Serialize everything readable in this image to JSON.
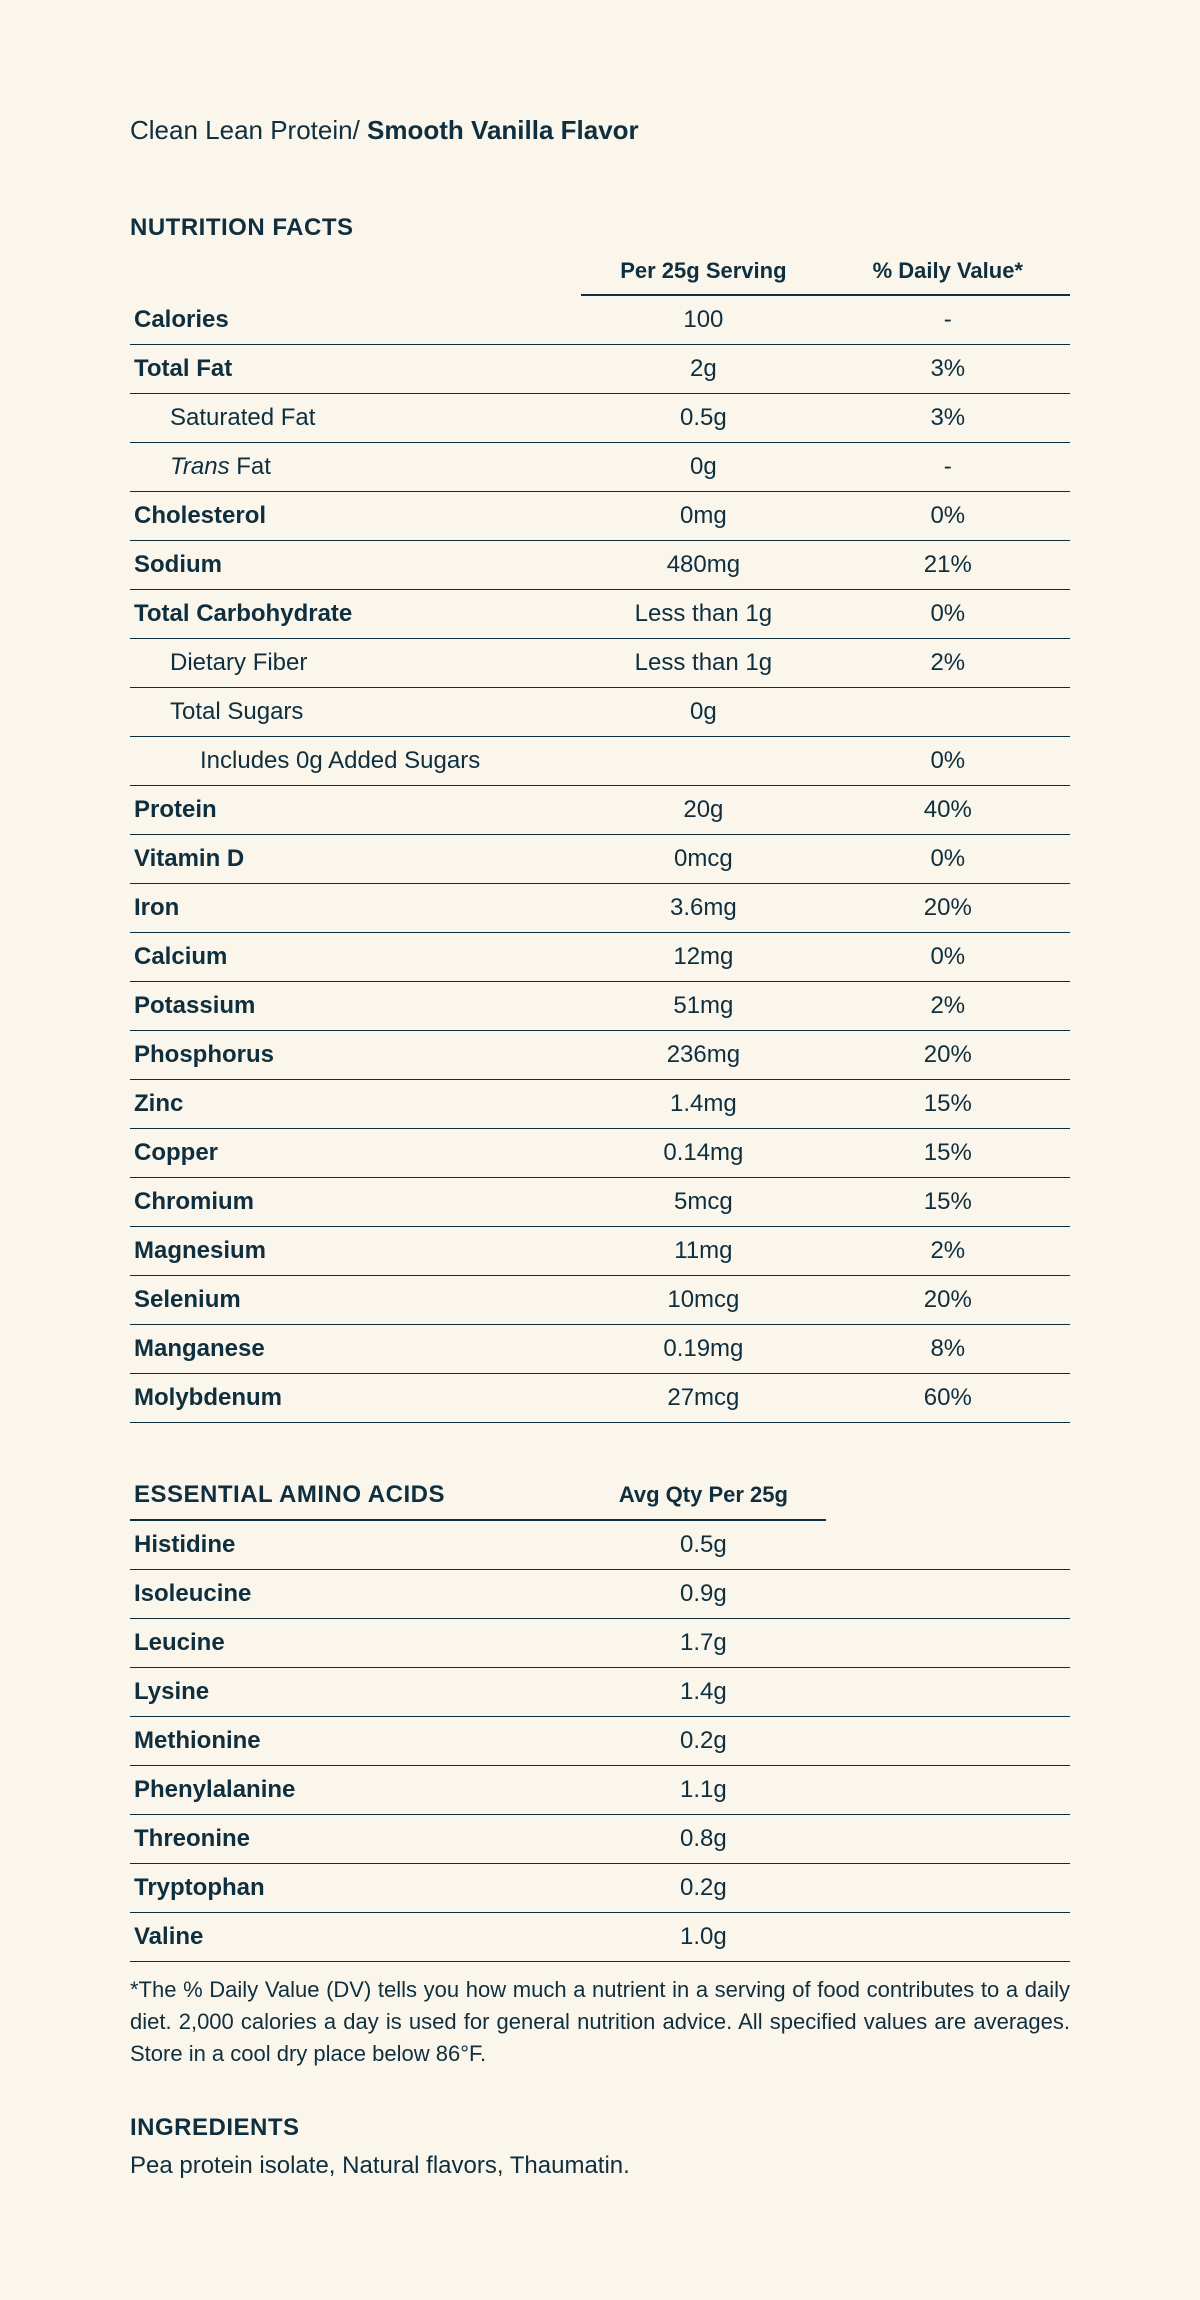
{
  "product": {
    "line1_prefix": "Clean Lean Protein/ ",
    "line1_bold": "Smooth Vanilla Flavor"
  },
  "nutrition": {
    "title": "NUTRITION FACTS",
    "col_serving": "Per 25g Serving",
    "col_dv": "% Daily Value*",
    "rows": [
      {
        "label": "Calories",
        "serving": "100",
        "dv": "-",
        "level": 0
      },
      {
        "label": "Total Fat",
        "serving": "2g",
        "dv": "3%",
        "level": 0
      },
      {
        "label": "Saturated Fat",
        "serving": "0.5g",
        "dv": "3%",
        "level": 1
      },
      {
        "label_html": "<span class='italic'>Trans</span> Fat",
        "serving": "0g",
        "dv": "-",
        "level": 1
      },
      {
        "label": "Cholesterol",
        "serving": "0mg",
        "dv": "0%",
        "level": 0
      },
      {
        "label": "Sodium",
        "serving": "480mg",
        "dv": "21%",
        "level": 0
      },
      {
        "label": "Total Carbohydrate",
        "serving": "Less than 1g",
        "dv": "0%",
        "level": 0
      },
      {
        "label": "Dietary Fiber",
        "serving": "Less than 1g",
        "dv": "2%",
        "level": 1
      },
      {
        "label": "Total Sugars",
        "serving": "0g",
        "dv": "",
        "level": 1
      },
      {
        "label": "Includes 0g Added Sugars",
        "serving": "",
        "dv": "0%",
        "level": 2
      },
      {
        "label": "Protein",
        "serving": "20g",
        "dv": "40%",
        "level": 0
      },
      {
        "label": "Vitamin D",
        "serving": "0mcg",
        "dv": "0%",
        "level": 0
      },
      {
        "label": "Iron",
        "serving": "3.6mg",
        "dv": "20%",
        "level": 0
      },
      {
        "label": "Calcium",
        "serving": "12mg",
        "dv": "0%",
        "level": 0
      },
      {
        "label": "Potassium",
        "serving": "51mg",
        "dv": "2%",
        "level": 0
      },
      {
        "label": "Phosphorus",
        "serving": "236mg",
        "dv": "20%",
        "level": 0
      },
      {
        "label": "Zinc",
        "serving": "1.4mg",
        "dv": "15%",
        "level": 0
      },
      {
        "label": "Copper",
        "serving": "0.14mg",
        "dv": "15%",
        "level": 0
      },
      {
        "label": "Chromium",
        "serving": "5mcg",
        "dv": "15%",
        "level": 0
      },
      {
        "label": "Magnesium",
        "serving": "11mg",
        "dv": "2%",
        "level": 0
      },
      {
        "label": "Selenium",
        "serving": "10mcg",
        "dv": "20%",
        "level": 0
      },
      {
        "label": "Manganese",
        "serving": "0.19mg",
        "dv": "8%",
        "level": 0
      },
      {
        "label": "Molybdenum",
        "serving": "27mcg",
        "dv": "60%",
        "level": 0
      }
    ]
  },
  "amino": {
    "title": "ESSENTIAL AMINO ACIDS",
    "col_avg": "Avg Qty Per 25g",
    "rows": [
      {
        "label": "Histidine",
        "val": "0.5g"
      },
      {
        "label": "Isoleucine",
        "val": "0.9g"
      },
      {
        "label": "Leucine",
        "val": "1.7g"
      },
      {
        "label": "Lysine",
        "val": "1.4g"
      },
      {
        "label": "Methionine",
        "val": "0.2g"
      },
      {
        "label": "Phenylalanine",
        "val": "1.1g"
      },
      {
        "label": "Threonine",
        "val": "0.8g"
      },
      {
        "label": "Tryptophan",
        "val": "0.2g"
      },
      {
        "label": "Valine",
        "val": "1.0g"
      }
    ]
  },
  "footnote": "*The % Daily Value (DV) tells you how much a nutrient in a serving of food contributes to a daily diet. 2,000 calories a day is used for general nutrition advice. All specified values are averages. Store in a cool dry place below 86°F.",
  "ingredients": {
    "title": "INGREDIENTS",
    "text": "Pea protein isolate, Natural flavors, Thaumatin."
  },
  "colors": {
    "background": "#faf6ec",
    "text": "#0f2f3f",
    "rule": "#0f2f3f"
  }
}
